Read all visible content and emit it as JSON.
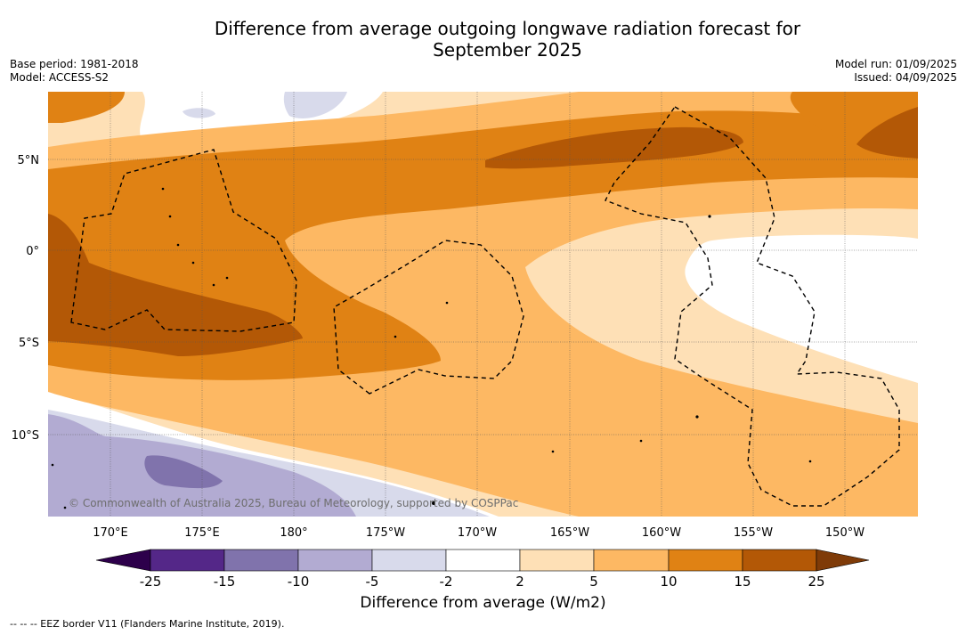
{
  "title_line1": "Difference from average outgoing longwave radiation forecast for",
  "title_line2": "September 2025",
  "base_period": "Base period: 1981-2018",
  "model": "Model: ACCESS-S2",
  "model_run": "Model run: 01/09/2025",
  "issued": "Issued: 04/09/2025",
  "copyright": "© Commonwealth of Australia 2025, Bureau of Meteorology, supported by COSPPac",
  "lat_labels": [
    "5°N",
    "0°",
    "5°S",
    "10°S"
  ],
  "lon_labels": [
    "170°E",
    "175°E",
    "180°",
    "175°W",
    "170°W",
    "165°W",
    "160°W",
    "155°W",
    "150°W"
  ],
  "colorbar": {
    "title": "Difference from average (W/m2)",
    "ticks": [
      "-25",
      "-15",
      "-10",
      "-5",
      "-2",
      "2",
      "5",
      "10",
      "15",
      "25"
    ],
    "colors": {
      "below": "#2d004b",
      "c1": "#542788",
      "c2": "#8073ac",
      "c3": "#b2abd2",
      "c4": "#d8daeb",
      "c5": "#ffffff",
      "c6": "#fee0b6",
      "c7": "#fdb863",
      "c8": "#e08214",
      "c9": "#b35806",
      "above": "#7f3b08"
    }
  },
  "legend_line": "-- -- -- EEZ border V11 (Flanders Marine Institute, 2019)."
}
